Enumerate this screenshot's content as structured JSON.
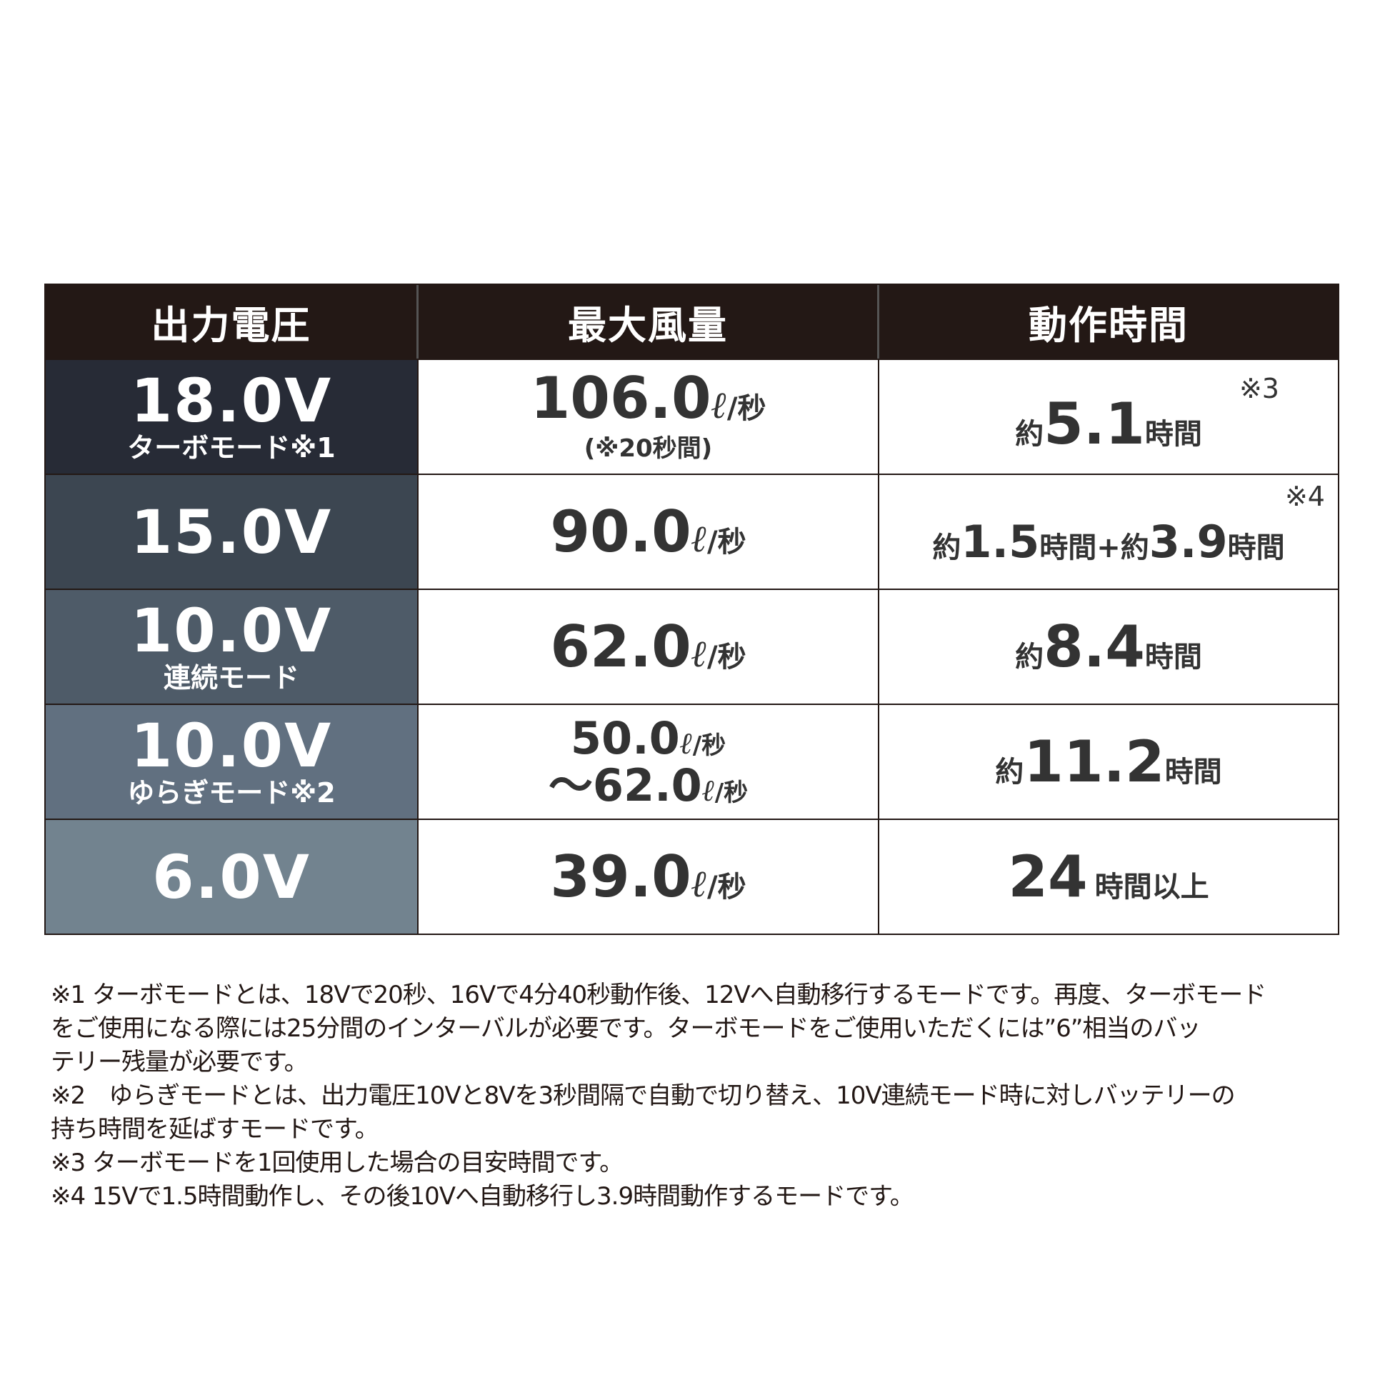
{
  "header": [
    "出力電圧",
    "最大風量",
    "動作時間"
  ],
  "row_colors": [
    "#272b36",
    "#3c4651",
    "#4e5b68",
    "#617080",
    "#72838f"
  ],
  "header_color": "#231815",
  "rows": [
    {
      "voltage": "18.0V",
      "mode": "ターボモード※1",
      "flow": "106.0",
      "flow_unit_l": "ℓ",
      "flow_unit": "/秒",
      "flow_note": "(※20秒間)",
      "time_prefix": "約",
      "time_value": "5.1",
      "time_suffix": "時間",
      "note": "※3"
    },
    {
      "voltage": "15.0V",
      "flow": "90.0",
      "flow_unit_l": "ℓ",
      "flow_unit": "/秒",
      "time_prefix": "約",
      "time_value": "1.5",
      "time_suffix": "時間",
      "time_plus": "+約",
      "time_value2": "3.9",
      "time_suffix2": "時間",
      "note": "※4"
    },
    {
      "voltage": "10.0V",
      "mode": "連続モード",
      "flow": "62.0",
      "flow_unit_l": "ℓ",
      "flow_unit": "/秒",
      "time_prefix": "約",
      "time_value": "8.4",
      "time_suffix": "時間"
    },
    {
      "voltage": "10.0V",
      "mode": "ゆらぎモード※2",
      "flow": "50.0",
      "flow_unit_l": "ℓ",
      "flow_unit": "/秒",
      "flow2_prefix": "～",
      "flow2": "62.0",
      "time_prefix": "約",
      "time_value": "11.2",
      "time_suffix": "時間"
    },
    {
      "voltage": "6.0V",
      "flow": "39.0",
      "flow_unit_l": "ℓ",
      "flow_unit": "/秒",
      "time_value": "24",
      "time_suffix": "時間以上"
    }
  ],
  "footnotes": [
    "※1 ターボモードとは、18Vで20秒、16Vで4分40秒動作後、12Vへ自動移行するモードです。再度、ターボモード",
    "をご使用になる際には25分間のインターバルが必要です。ターボモードをご使用いただくには”6”相当のバッ",
    "テリー残量が必要です。",
    "※2　ゆらぎモードとは、出力電圧10Vと8Vを3秒間隔で自動で切り替え、10V連続モード時に対しバッテリーの",
    "持ち時間を延ばすモードです。",
    "※3 ターボモードを1回使用した場合の目安時間です。",
    "※4 15Vで1.5時間動作し、その後10Vへ自動移行し3.9時間動作するモードです。"
  ]
}
